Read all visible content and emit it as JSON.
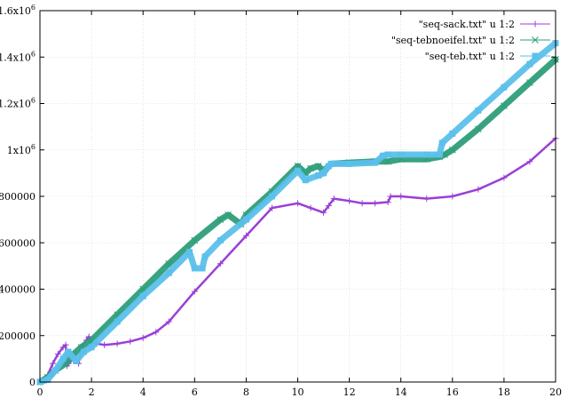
{
  "chart_data": {
    "type": "scatter",
    "title": "",
    "xlabel": "",
    "ylabel": "",
    "xlim": [
      0,
      20
    ],
    "ylim": [
      0,
      1600000
    ],
    "xticks": [
      0,
      2,
      4,
      6,
      8,
      10,
      12,
      14,
      16,
      18,
      20
    ],
    "xtick_labels": [
      "0",
      "2",
      "4",
      "6",
      "8",
      "10",
      "12",
      "14",
      "16",
      "18",
      "20"
    ],
    "yticks": [
      0,
      200000,
      400000,
      600000,
      800000,
      1000000,
      1200000,
      1400000,
      1600000
    ],
    "ytick_labels": [
      {
        "base": "0",
        "sup": ""
      },
      {
        "base": "200000",
        "sup": ""
      },
      {
        "base": "400000",
        "sup": ""
      },
      {
        "base": "600000",
        "sup": ""
      },
      {
        "base": "800000",
        "sup": ""
      },
      {
        "base": "1x10",
        "sup": "6"
      },
      {
        "base": "1.2x10",
        "sup": "6"
      },
      {
        "base": "1.4x10",
        "sup": "6"
      },
      {
        "base": "1.6x10",
        "sup": "6"
      }
    ],
    "grid": true,
    "legend_position": "top-right",
    "series": [
      {
        "name": "\"seq-sack.txt\" u 1:2",
        "color": "#9b3fd6",
        "marker": "plus",
        "x": [
          0,
          0.3,
          0.5,
          0.7,
          0.9,
          1.0,
          1.05,
          1.2,
          1.4,
          1.5,
          1.6,
          1.8,
          1.9,
          2.0,
          2.2,
          2.5,
          3.0,
          3.5,
          4.0,
          4.5,
          5.0,
          6.0,
          7.0,
          8.0,
          9.0,
          10.0,
          10.5,
          11.0,
          11.2,
          11.4,
          12.0,
          12.5,
          13.0,
          13.5,
          13.6,
          14.0,
          15.0,
          16.0,
          17.0,
          18.0,
          19.0,
          20.0
        ],
        "y": [
          0,
          30000,
          80000,
          120000,
          150000,
          160000,
          70000,
          90000,
          100000,
          80000,
          150000,
          180000,
          195000,
          170000,
          165000,
          160000,
          165000,
          175000,
          190000,
          215000,
          260000,
          390000,
          510000,
          630000,
          750000,
          770000,
          750000,
          730000,
          760000,
          790000,
          780000,
          770000,
          770000,
          775000,
          800000,
          800000,
          790000,
          800000,
          830000,
          880000,
          950000,
          1050000
        ]
      },
      {
        "name": "\"seq-tebnoeifel.txt\" u 1:2",
        "color": "#2e9e7a",
        "marker": "cross",
        "x": [
          0,
          0.3,
          0.6,
          1.0,
          1.3,
          1.6,
          2.0,
          3.0,
          4.0,
          5.0,
          6.0,
          7.0,
          7.3,
          7.8,
          8.0,
          9.0,
          10.0,
          10.3,
          10.5,
          10.8,
          11.0,
          11.3,
          12.0,
          13.0,
          13.5,
          14.0,
          15.0,
          15.5,
          15.7,
          16.0,
          17.0,
          18.0,
          19.0,
          20.0
        ],
        "y": [
          0,
          20000,
          50000,
          80000,
          120000,
          150000,
          180000,
          290000,
          400000,
          510000,
          610000,
          700000,
          720000,
          680000,
          720000,
          820000,
          930000,
          900000,
          920000,
          930000,
          910000,
          940000,
          945000,
          950000,
          950000,
          960000,
          960000,
          970000,
          980000,
          1000000,
          1090000,
          1190000,
          1290000,
          1390000
        ]
      },
      {
        "name": "\"seq-teb.txt\" u 1:2",
        "color": "#5bc0eb",
        "marker": "square",
        "x": [
          0,
          0.3,
          0.6,
          0.9,
          1.1,
          1.4,
          1.7,
          2.0,
          3.0,
          4.0,
          5.0,
          5.8,
          6.0,
          6.3,
          6.4,
          7.0,
          8.0,
          9.0,
          10.0,
          10.3,
          10.8,
          11.0,
          11.2,
          11.3,
          12.0,
          13.0,
          13.3,
          13.5,
          14.0,
          15.0,
          15.5,
          15.6,
          16.0,
          17.0,
          18.0,
          19.0,
          20.0
        ],
        "y": [
          0,
          10000,
          50000,
          100000,
          130000,
          90000,
          130000,
          150000,
          260000,
          370000,
          470000,
          560000,
          490000,
          490000,
          540000,
          610000,
          700000,
          800000,
          910000,
          870000,
          890000,
          900000,
          930000,
          940000,
          940000,
          945000,
          975000,
          980000,
          980000,
          980000,
          980000,
          1030000,
          1070000,
          1170000,
          1270000,
          1370000,
          1460000
        ]
      }
    ]
  }
}
